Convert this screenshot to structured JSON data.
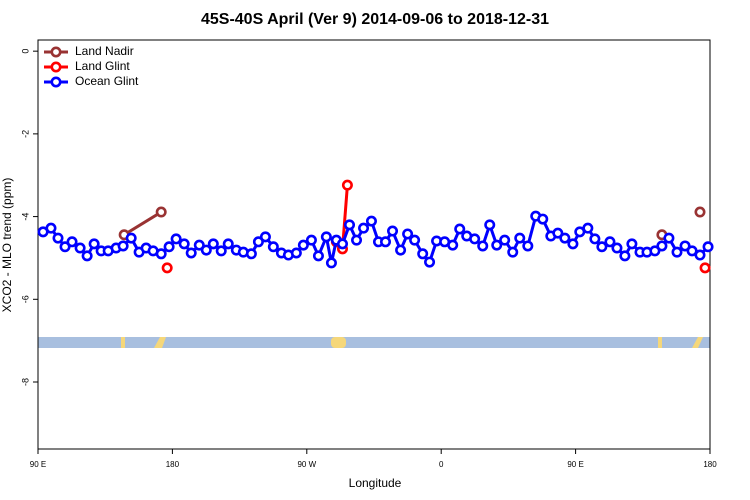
{
  "chart_data": {
    "type": "line",
    "title": "45S-40S April (Ver 9)   2014-09-06 to 2018-12-31",
    "x_label": "Longitude",
    "y_label": "XCO2 - MLO trend (ppm)",
    "xlim": [
      90,
      540
    ],
    "ylim": [
      -9.62,
      0.27
    ],
    "xticks": [
      {
        "value": 90,
        "label": "90 E"
      },
      180,
      {
        "value": 270,
        "label": "90 W"
      },
      {
        "value": 360,
        "label": "0"
      },
      {
        "value": 450,
        "label": "90 E"
      },
      {
        "value": 540,
        "label": "180"
      }
    ],
    "yticks": [
      0,
      -2,
      -4,
      -6,
      -8
    ],
    "legend": "topleft",
    "series": [
      {
        "name": "Land Nadir",
        "color": "#993333",
        "x": [
          147.7,
          172.5,
          null,
          507.8,
          null,
          533.3
        ],
        "values": [
          -4.44,
          -3.89,
          null,
          -4.44,
          null,
          -3.89
        ]
      },
      {
        "name": "Land Glint",
        "color": "#ff0000",
        "x": [
          176.5,
          null,
          289.8,
          293.9,
          297.2,
          null,
          536.7
        ],
        "values": [
          -5.24,
          null,
          -4.61,
          -4.78,
          -3.24,
          null,
          -5.24
        ]
      },
      {
        "name": "Ocean Glint",
        "color": "#0000ff",
        "x": [
          93.4,
          98.7,
          103.4,
          108.1,
          112.8,
          118.2,
          122.9,
          127.6,
          132.3,
          137.0,
          142.3,
          147.0,
          152.4,
          157.7,
          162.4,
          167.1,
          172.5,
          177.8,
          182.5,
          187.9,
          192.6,
          198.0,
          202.7,
          207.4,
          212.7,
          217.4,
          222.8,
          227.5,
          232.9,
          237.6,
          242.3,
          247.6,
          253.0,
          257.7,
          263.0,
          267.7,
          273.1,
          277.8,
          283.1,
          286.5,
          289.8,
          293.9,
          298.6,
          303.3,
          308.0,
          313.3,
          318.0,
          322.7,
          327.4,
          332.8,
          337.5,
          342.2,
          347.6,
          352.2,
          356.9,
          362.3,
          367.7,
          372.4,
          377.1,
          382.4,
          387.8,
          392.5,
          397.2,
          402.5,
          407.9,
          412.6,
          418.0,
          423.3,
          428.0,
          433.4,
          438.1,
          442.8,
          448.2,
          452.8,
          458.2,
          462.9,
          467.6,
          473.0,
          477.7,
          483.0,
          487.7,
          493.1,
          497.8,
          503.1,
          507.8,
          512.5,
          517.9,
          523.3,
          528.0,
          533.3,
          538.7
        ],
        "values": [
          -4.37,
          -4.28,
          -4.52,
          -4.73,
          -4.61,
          -4.76,
          -4.95,
          -4.66,
          -4.83,
          -4.83,
          -4.76,
          -4.71,
          -4.52,
          -4.86,
          -4.76,
          -4.83,
          -4.9,
          -4.73,
          -4.54,
          -4.66,
          -4.88,
          -4.69,
          -4.81,
          -4.66,
          -4.83,
          -4.66,
          -4.81,
          -4.86,
          -4.9,
          -4.61,
          -4.49,
          -4.73,
          -4.88,
          -4.93,
          -4.88,
          -4.69,
          -4.57,
          -4.95,
          -4.49,
          -5.12,
          -4.57,
          -4.66,
          -4.2,
          -4.57,
          -4.28,
          -4.11,
          -4.61,
          -4.61,
          -4.35,
          -4.81,
          -4.42,
          -4.57,
          -4.9,
          -5.1,
          -4.59,
          -4.61,
          -4.69,
          -4.3,
          -4.47,
          -4.54,
          -4.71,
          -4.2,
          -4.69,
          -4.57,
          -4.86,
          -4.52,
          -4.71,
          -3.99,
          -4.06,
          -4.47,
          -4.4,
          -4.52,
          -4.66,
          -4.37,
          -4.28,
          -4.54,
          -4.73,
          -4.61,
          -4.76,
          -4.95,
          -4.66,
          -4.86,
          -4.86,
          -4.83,
          -4.71,
          -4.52,
          -4.86,
          -4.71,
          -4.83,
          -4.93,
          -4.73
        ]
      }
    ]
  }
}
